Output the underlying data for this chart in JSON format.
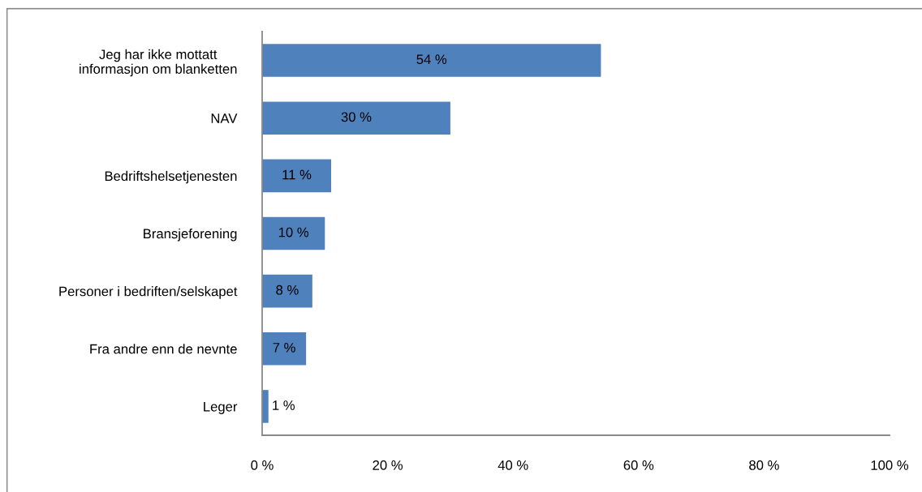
{
  "chart_data": {
    "type": "bar",
    "orientation": "horizontal",
    "categories": [
      "Jeg har ikke mottatt\ninformasjon om blanketten",
      "NAV",
      "Bedriftshelsetjenesten",
      "Bransjeforening",
      "Personer i bedriften/selskapet",
      "Fra andre enn de nevnte",
      "Leger"
    ],
    "values": [
      54,
      30,
      11,
      10,
      8,
      7,
      1
    ],
    "value_labels": [
      "54 %",
      "30 %",
      "11 %",
      "10 %",
      "8 %",
      "7 %",
      "1 %"
    ],
    "color": "#4f81bd",
    "xlim": [
      0,
      100
    ],
    "xticks": [
      {
        "value": 0,
        "label": "0 %"
      },
      {
        "value": 20,
        "label": "20 %"
      },
      {
        "value": 40,
        "label": "40 %"
      },
      {
        "value": 60,
        "label": "60 %"
      },
      {
        "value": 80,
        "label": "80 %"
      },
      {
        "value": 100,
        "label": "100 %"
      }
    ],
    "grid": false,
    "legend": false
  }
}
